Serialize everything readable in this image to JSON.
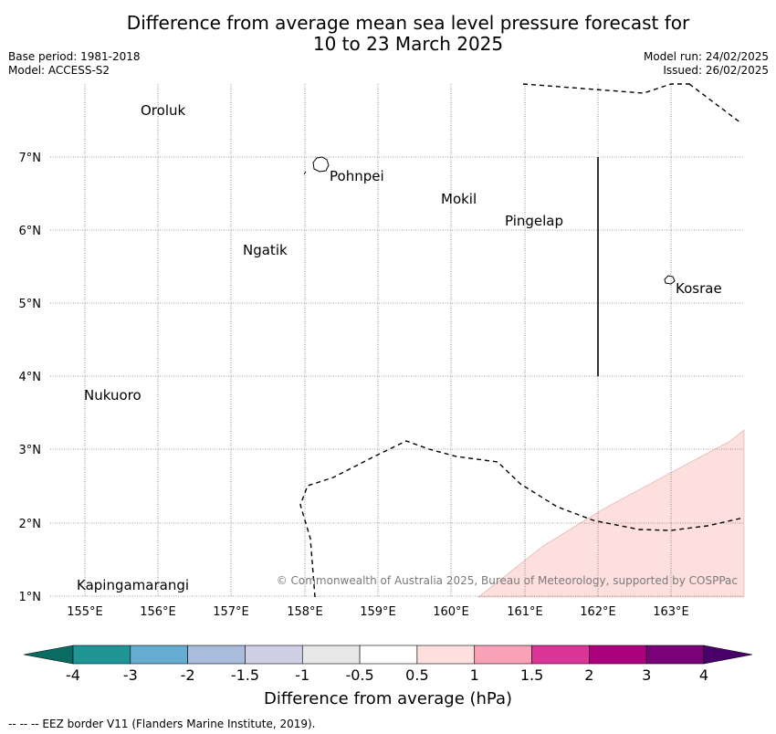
{
  "header": {
    "title_line1": "Difference from average mean sea level pressure forecast for",
    "title_line2": "10 to 23 March 2025",
    "base_period": "Base period: 1981-2018",
    "model": "Model: ACCESS-S2",
    "model_run": "Model run: 24/02/2025",
    "issued": "Issued: 26/02/2025"
  },
  "map": {
    "lon_ticks": [
      "155°E",
      "156°E",
      "157°E",
      "158°E",
      "159°E",
      "160°E",
      "161°E",
      "162°E",
      "163°E"
    ],
    "lat_ticks": [
      "7°N",
      "6°N",
      "5°N",
      "4°N",
      "3°N",
      "2°N",
      "1°N"
    ],
    "places": [
      "Oroluk",
      "Pohnpei",
      "Mokil",
      "Pingelap",
      "Ngatik",
      "Kosrae",
      "Nukuoro",
      "Kapingamarangi"
    ],
    "copyright": "© Commonwealth of Australia 2025, Bureau of Meteorology, supported by COSPPac",
    "anomaly_fill_color": "#fde0dd"
  },
  "colorbar": {
    "tick_labels": [
      "-4",
      "-3",
      "-2",
      "-1.5",
      "-1",
      "-0.5",
      "0.5",
      "1",
      "1.5",
      "2",
      "3",
      "4"
    ],
    "colors": [
      "#0a6b63",
      "#1f9696",
      "#66abd0",
      "#a9bcdc",
      "#cfcfe6",
      "#e8e8e8",
      "#ffffff",
      "#fde0dd",
      "#f9a1b7",
      "#dd3497",
      "#ae017e",
      "#7a0177",
      "#49006a"
    ],
    "label": "Difference from average (hPa)"
  },
  "footnote": "--  --  -- EEZ border V11 (Flanders Marine Institute, 2019)."
}
